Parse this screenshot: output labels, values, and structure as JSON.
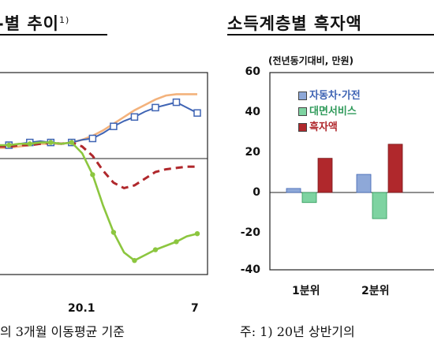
{
  "left_panel": {
    "title": "-별 추이",
    "title_sup": "1)",
    "x_ticks": [
      "20.1",
      "7"
    ],
    "note": "의 3개월 이동평균 기준"
  },
  "right_panel": {
    "title": "소득계층별 흑자액",
    "unit": "(전년동기대비, 만원)",
    "note": "주: 1) 20년 상반기의"
  },
  "colors": {
    "blue": "#3f64b4",
    "orange": "#f3b27c",
    "red": "#b0282c",
    "green": "#8cc63f",
    "green_bar": "#7ed3a1"
  },
  "chart_data": [
    {
      "type": "line",
      "x_ticks": [
        "20.1",
        "7"
      ],
      "series": [
        {
          "values": [
            10,
            10,
            11,
            12,
            13,
            12,
            11,
            12,
            14,
            15,
            19,
            24,
            28,
            31,
            35,
            38,
            40,
            42,
            38,
            34
          ]
        },
        {
          "values": [
            8,
            8,
            9,
            10,
            11,
            11,
            11,
            12,
            14,
            17,
            21,
            26,
            31,
            36,
            40,
            44,
            47,
            48,
            48,
            48
          ]
        },
        {
          "values": [
            9,
            9,
            10,
            10,
            11,
            12,
            11,
            12,
            9,
            2,
            -9,
            -18,
            -22,
            -20,
            -15,
            -10,
            -8,
            -7,
            -6,
            -6
          ]
        },
        {
          "values": [
            10,
            10,
            11,
            11,
            12,
            12,
            11,
            12,
            4,
            -12,
            -35,
            -55,
            -70,
            -76,
            -72,
            -68,
            -65,
            -62,
            -58,
            -56
          ]
        }
      ]
    },
    {
      "type": "bar",
      "categories": [
        "1분위",
        "2분위"
      ],
      "ylim": [
        -40,
        60
      ],
      "y_ticks": [
        60,
        40,
        20,
        0,
        -20,
        -40
      ],
      "series": [
        {
          "name": "자동차·가전",
          "values": [
            2,
            9
          ]
        },
        {
          "name": "대면서비스",
          "values": [
            -5,
            -13
          ]
        },
        {
          "name": "흑자액",
          "values": [
            17,
            24
          ]
        }
      ]
    }
  ]
}
